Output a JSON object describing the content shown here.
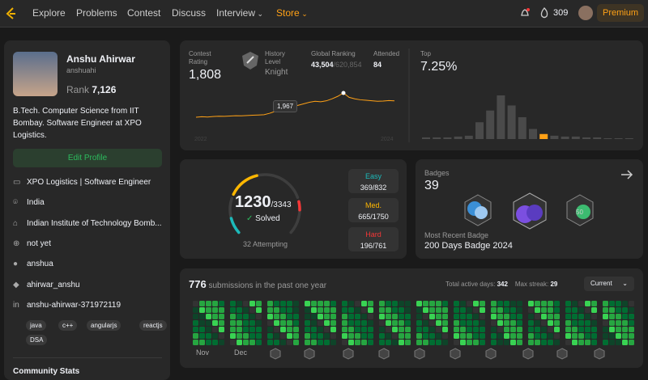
{
  "nav": {
    "links": [
      "Explore",
      "Problems",
      "Contest",
      "Discuss",
      "Interview",
      "Store"
    ],
    "streak": "309",
    "premium": "Premium"
  },
  "profile": {
    "name": "Anshu Ahirwar",
    "username": "anshuahi",
    "rank_label": "Rank",
    "rank": "7,126",
    "bio": "B.Tech. Computer Science from IIT Bombay. Software Engineer at XPO Logistics.",
    "edit": "Edit Profile",
    "info": [
      "XPO Logistics | Software Engineer",
      "India",
      "Indian Institute of Technology Bomb...",
      "not yet",
      "anshua",
      "ahirwar_anshu",
      "anshu-ahirwar-371972119"
    ],
    "tags": [
      "java",
      "c++",
      "angularjs",
      "reactjs",
      "DSA"
    ],
    "community": "Community Stats"
  },
  "contest": {
    "rating_label": "Contest Rating",
    "rating": "1,808",
    "level_label": "History Level",
    "level": "Knight",
    "global_label": "Global Ranking",
    "global": "43,504",
    "global_total": "/620,854",
    "attended_label": "Attended",
    "attended": "84",
    "tooltip": "1,967",
    "x_start": "2022",
    "x_end": "2024",
    "history": [
      1480,
      1490,
      1485,
      1495,
      1500,
      1498,
      1505,
      1510,
      1508,
      1515,
      1520,
      1525,
      1530,
      1560,
      1600,
      1650,
      1700,
      1690,
      1720,
      1750,
      1780,
      1800,
      1790,
      1810,
      1850,
      1900,
      1967,
      1880,
      1850,
      1830,
      1820,
      1810,
      1800,
      1805,
      1815,
      1808
    ],
    "top_label": "Top",
    "top": "7.25%",
    "histogram": [
      2,
      2,
      2,
      3,
      4,
      20,
      34,
      52,
      40,
      26,
      12,
      6,
      4,
      3,
      3,
      2,
      2,
      1,
      1,
      1
    ],
    "highlight_index": 11
  },
  "solved": {
    "count": 1230,
    "total": 3343,
    "label": "Solved",
    "attempting": "32 Attempting",
    "levels": [
      {
        "name": "Easy",
        "solved": 369,
        "total": 832,
        "color": "#1cbaba"
      },
      {
        "name": "Med.",
        "solved": 665,
        "total": 1750,
        "color": "#ffb700"
      },
      {
        "name": "Hard",
        "solved": 196,
        "total": 761,
        "color": "#f63737"
      }
    ]
  },
  "badges": {
    "label": "Badges",
    "count": "39",
    "recent_label": "Most Recent Badge",
    "recent": "200 Days Badge 2024"
  },
  "submissions": {
    "count": "776",
    "label": "submissions in the past one year",
    "active_label": "Total active days:",
    "active": "342",
    "streak_label": "Max streak:",
    "streak": "29",
    "select": "Current",
    "months": [
      "Nov",
      "Dec"
    ]
  }
}
